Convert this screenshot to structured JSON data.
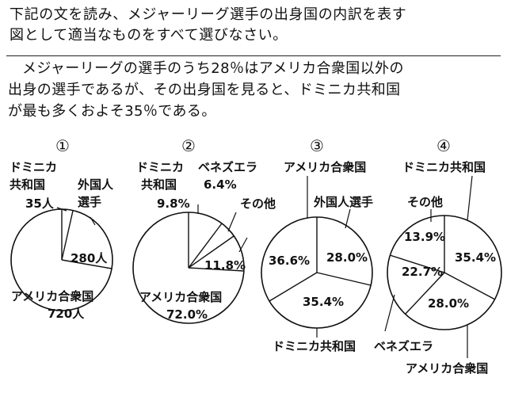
{
  "question": {
    "line1": "下記の文を読み、メジャーリーグ選手の出身国の内訳を表す",
    "line2": "図として適当なものをすべて選びなさい。"
  },
  "passage": {
    "line1": "メジャーリーグの選手のうち28％はアメリカ合衆国以外の",
    "line2": "出身の選手であるが、その出身国を見ると、ドミニカ共和国",
    "line3": "が最も多くおよそ35％である。"
  },
  "figures": [
    {
      "number": "①",
      "labels": {
        "dominican_l1": "ドミニカ",
        "dominican_l2": "共和国",
        "dominican_value": "35人",
        "foreign_l1": "外国人",
        "foreign_l2": "選手",
        "foreign_value": "280人",
        "usa": "アメリカ合衆国",
        "usa_value": "720人"
      }
    },
    {
      "number": "②",
      "labels": {
        "dominican_l1": "ドミニカ",
        "dominican_l2": "共和国",
        "dominican_value": "9.8%",
        "venezuela": "ベネズエラ",
        "venezuela_value": "6.4%",
        "other": "その他",
        "other_value": "11.8%",
        "usa": "アメリカ合衆国",
        "usa_value": "72.0%"
      }
    },
    {
      "number": "③",
      "labels": {
        "usa": "アメリカ合衆国",
        "usa_value": "36.6%",
        "foreign": "外国人選手",
        "foreign_value": "28.0%",
        "dominican": "ドミニカ共和国",
        "dominican_value": "35.4%"
      }
    },
    {
      "number": "④",
      "labels": {
        "dominican": "ドミニカ共和国",
        "dominican_value": "35.4%",
        "other": "その他",
        "other_value": "13.9%",
        "venezuela": "ベネズエラ",
        "venezuela_value": "22.7%",
        "usa": "アメリカ合衆国",
        "usa_value": "28.0%"
      }
    }
  ]
}
